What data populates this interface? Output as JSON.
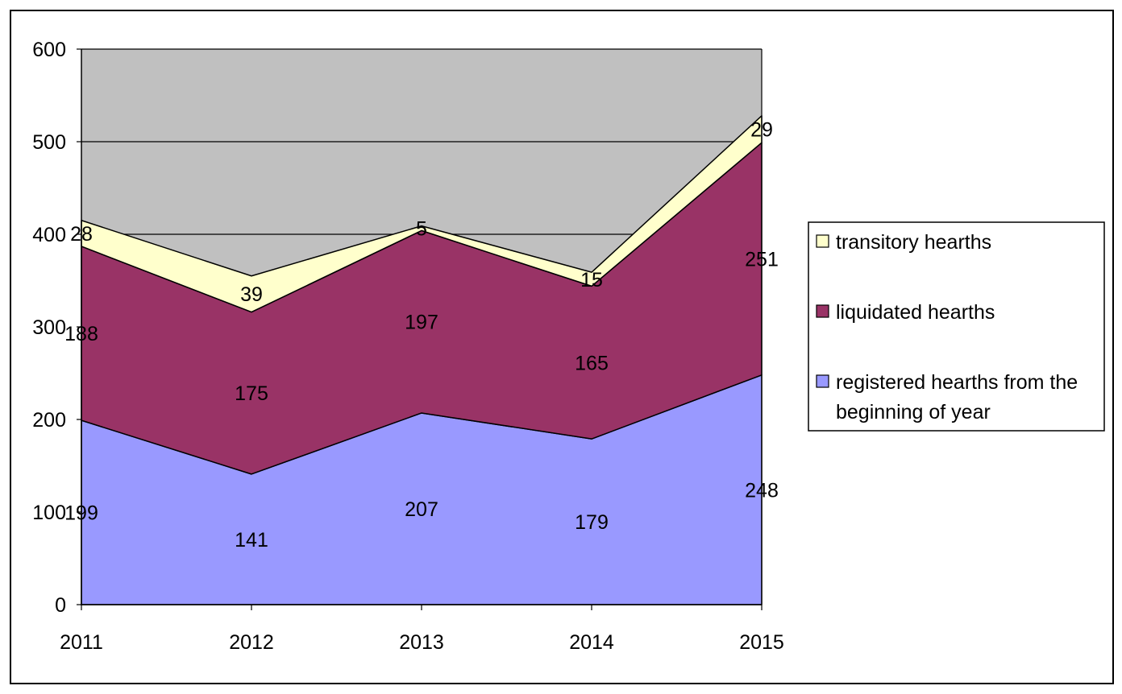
{
  "chart_data": {
    "type": "area",
    "stacked": true,
    "categories": [
      "2011",
      "2012",
      "2013",
      "2014",
      "2015"
    ],
    "series": [
      {
        "name": "registered hearths from the beginning of year",
        "values": [
          199,
          141,
          207,
          179,
          248
        ],
        "color": "#9999ff"
      },
      {
        "name": "liquidated hearths",
        "values": [
          188,
          175,
          197,
          165,
          251
        ],
        "color": "#993366"
      },
      {
        "name": "transitory hearths",
        "values": [
          28,
          39,
          5,
          15,
          29
        ],
        "color": "#ffffcc"
      }
    ],
    "ylim": [
      0,
      600
    ],
    "yticks": [
      0,
      100,
      200,
      300,
      400,
      500,
      600
    ],
    "plot_background": "#c0c0c0",
    "grid": true,
    "legend_position": "right",
    "legend_order": [
      "transitory hearths",
      "liquidated hearths",
      "registered hearths from the beginning of year"
    ],
    "data_labels": true
  }
}
